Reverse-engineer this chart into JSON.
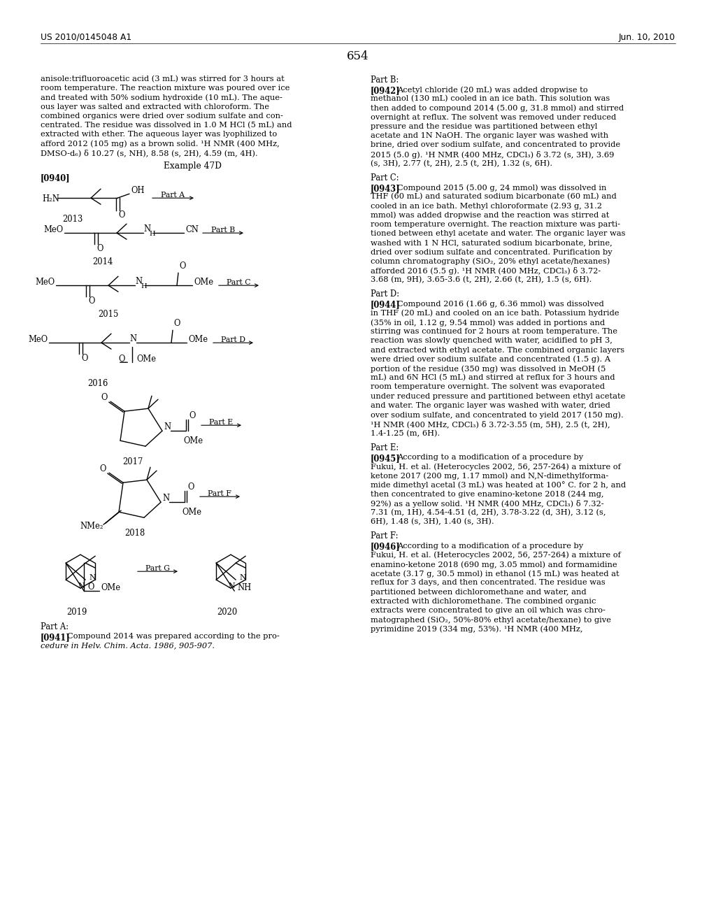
{
  "background_color": "#ffffff",
  "header_left": "US 2010/0145048 A1",
  "header_right": "Jun. 10, 2010",
  "page_number": "654",
  "left_top_lines": [
    "anisole:trifluoroacetic acid (3 mL) was stirred for 3 hours at",
    "room temperature. The reaction mixture was poured over ice",
    "and treated with 50% sodium hydroxide (10 mL). The aque-",
    "ous layer was salted and extracted with chloroform. The",
    "combined organics were dried over sodium sulfate and con-",
    "centrated. The residue was dissolved in 1.0 M HCl (5 mL) and",
    "extracted with ether. The aqueous layer was lyophilized to",
    "afford 2012 (105 mg) as a brown solid. ¹H NMR (400 MHz,",
    "DMSO-d₆) δ 10.27 (s, NH), 8.58 (s, 2H), 4.59 (m, 4H)."
  ],
  "example_title": "Example 47D",
  "para0940": "[0940]",
  "part_a_bottom_header": "Part A:",
  "para0941": "[0941]",
  "part_a_line1": "Compound 2014 was prepared according to the pro-",
  "part_a_line2": "cedure in Helv. Chim. Acta. 1986, 905-907.",
  "right_part_b_header": "Part B:",
  "para0942": "[0942]",
  "part_b_lines": [
    "Acetyl chloride (20 mL) was added dropwise to",
    "methanol (130 mL) cooled in an ice bath. This solution was",
    "then added to compound 2014 (5.00 g, 31.8 mmol) and stirred",
    "overnight at reflux. The solvent was removed under reduced",
    "pressure and the residue was partitioned between ethyl",
    "acetate and 1N NaOH. The organic layer was washed with",
    "brine, dried over sodium sulfate, and concentrated to provide",
    "2015 (5.0 g). ¹H NMR (400 MHz, CDCl₃) δ 3.72 (s, 3H), 3.69",
    "(s, 3H), 2.77 (t, 2H), 2.5 (t, 2H), 1.32 (s, 6H)."
  ],
  "right_part_c_header": "Part C:",
  "para0943": "[0943]",
  "part_c_lines": [
    "Compound 2015 (5.00 g, 24 mmol) was dissolved in",
    "THF (60 mL) and saturated sodium bicarbonate (60 mL) and",
    "cooled in an ice bath. Methyl chloroformate (2.93 g, 31.2",
    "mmol) was added dropwise and the reaction was stirred at",
    "room temperature overnight. The reaction mixture was parti-",
    "tioned between ethyl acetate and water. The organic layer was",
    "washed with 1 N HCl, saturated sodium bicarbonate, brine,",
    "dried over sodium sulfate and concentrated. Purification by",
    "column chromatography (SiO₂, 20% ethyl acetate/hexanes)",
    "afforded 2016 (5.5 g). ¹H NMR (400 MHz, CDCl₃) δ 3.72-",
    "3.68 (m, 9H), 3.65-3.6 (t, 2H), 2.66 (t, 2H), 1.5 (s, 6H)."
  ],
  "right_part_d_header": "Part D:",
  "para0944": "[0944]",
  "part_d_lines": [
    "Compound 2016 (1.66 g, 6.36 mmol) was dissolved",
    "in THF (20 mL) and cooled on an ice bath. Potassium hydride",
    "(35% in oil, 1.12 g, 9.54 mmol) was added in portions and",
    "stirring was continued for 2 hours at room temperature. The",
    "reaction was slowly quenched with water, acidified to pH 3,",
    "and extracted with ethyl acetate. The combined organic layers",
    "were dried over sodium sulfate and concentrated (1.5 g). A",
    "portion of the residue (350 mg) was dissolved in MeOH (5",
    "mL) and 6N HCl (5 mL) and stirred at reflux for 3 hours and",
    "room temperature overnight. The solvent was evaporated",
    "under reduced pressure and partitioned between ethyl acetate",
    "and water. The organic layer was washed with water, dried",
    "over sodium sulfate, and concentrated to yield 2017 (150 mg).",
    "¹H NMR (400 MHz, CDCl₃) δ 3.72-3.55 (m, 5H), 2.5 (t, 2H),",
    "1.4-1.25 (m, 6H)."
  ],
  "right_part_e_header": "Part E:",
  "para0945": "[0945]",
  "part_e_lines": [
    "According to a modification of a procedure by",
    "Fukui, H. et al. (Heterocycles 2002, 56, 257-264) a mixture of",
    "ketone 2017 (200 mg, 1.17 mmol) and N,N-dimethylforma-",
    "mide dimethyl acetal (3 mL) was heated at 100° C. for 2 h, and",
    "then concentrated to give enamino-ketone 2018 (244 mg,",
    "92%) as a yellow solid. ¹H NMR (400 MHz, CDCl₃) δ 7.32-",
    "7.31 (m, 1H), 4.54-4.51 (d, 2H), 3.78-3.22 (d, 3H), 3.12 (s,",
    "6H), 1.48 (s, 3H), 1.40 (s, 3H)."
  ],
  "right_part_f_header": "Part F:",
  "para0946": "[0946]",
  "part_f_lines": [
    "According to a modification of a procedure by",
    "Fukui, H. et al. (Heterocycles 2002, 56, 257-264) a mixture of",
    "enamino-ketone 2018 (690 mg, 3.05 mmol) and formamidine",
    "acetate (3.17 g, 30.5 mmol) in ethanol (15 mL) was heated at",
    "reflux for 3 days, and then concentrated. The residue was",
    "partitioned between dichloromethane and water, and",
    "extracted with dichloromethane. The combined organic",
    "extracts were concentrated to give an oil which was chro-",
    "matographed (SiO₂, 50%-80% ethyl acetate/hexane) to give",
    "pyrimidine 2019 (334 mg, 53%). ¹H NMR (400 MHz,"
  ]
}
